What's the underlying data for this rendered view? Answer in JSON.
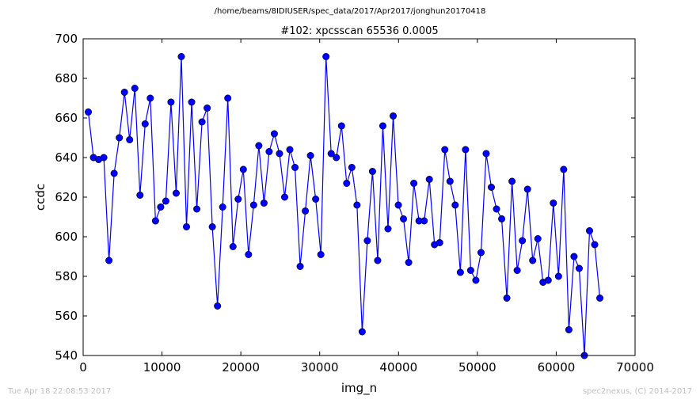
{
  "page_title": "/home/beams/8IDIUSER/spec_data/2017/Apr2017/jonghun20170418",
  "footer": {
    "timestamp": "Tue Apr 18 22:08:53 2017",
    "credit": "spec2nexus, (C) 2014-2017"
  },
  "chart_data": {
    "type": "line",
    "title": "#102: xpcsscan 65536 0.0005",
    "xlabel": "img_n",
    "ylabel": "ccdc",
    "xlim": [
      0,
      70000
    ],
    "ylim": [
      540,
      700
    ],
    "x_ticks": [
      0,
      10000,
      20000,
      30000,
      40000,
      50000,
      60000,
      70000
    ],
    "y_ticks": [
      540,
      560,
      580,
      600,
      620,
      640,
      660,
      680,
      700
    ],
    "grid": false,
    "color": "#0000ff",
    "marker": "circle",
    "series": [
      {
        "x": [
          655,
          1311,
          1966,
          2621,
          3277,
          3932,
          4588,
          5243,
          5898,
          6554,
          7209,
          7865,
          8520,
          9175,
          9831,
          10486,
          11141,
          11797,
          12452,
          13108,
          13763,
          14418,
          15074,
          15729,
          16384,
          17040,
          17695,
          18350,
          19006,
          19661,
          20316,
          20972,
          21627,
          22283,
          22938,
          23593,
          24249,
          24904,
          25559,
          26215,
          26870,
          27525,
          28181,
          28836,
          29491,
          30147,
          30802,
          31457,
          32113,
          32768,
          33423,
          34079,
          34734,
          35389,
          36045,
          36700,
          37356,
          38011,
          38666,
          39322,
          39977,
          40632,
          41288,
          41943,
          42598,
          43254,
          43909,
          44564,
          45220,
          45875,
          46530,
          47186,
          47841,
          48497,
          49152,
          49807,
          50463,
          51118,
          51773,
          52429,
          53084,
          53739,
          54395,
          55050,
          55705,
          56361,
          57016,
          57672,
          58327,
          58982,
          59638,
          60293,
          60948,
          61604,
          62259,
          62914,
          63570,
          64225,
          64880,
          65536
        ],
        "y": [
          663,
          640,
          639,
          640,
          588,
          632,
          650,
          673,
          649,
          675,
          621,
          657,
          670,
          608,
          615,
          618,
          668,
          622,
          691,
          605,
          668,
          614,
          658,
          665,
          605,
          565,
          615,
          670,
          595,
          619,
          634,
          591,
          616,
          646,
          617,
          643,
          652,
          642,
          620,
          644,
          635,
          585,
          613,
          641,
          619,
          591,
          691,
          642,
          640,
          656,
          627,
          635,
          616,
          552,
          598,
          633,
          588,
          656,
          604,
          661,
          616,
          609,
          587,
          627,
          608,
          608,
          629,
          596,
          597,
          644,
          628,
          616,
          582,
          644,
          583,
          578,
          592,
          642,
          625,
          614,
          609,
          569,
          628,
          583,
          598,
          624,
          588,
          599,
          577,
          578,
          617,
          580,
          634,
          553,
          590,
          584,
          540,
          603,
          596,
          569
        ]
      }
    ]
  }
}
